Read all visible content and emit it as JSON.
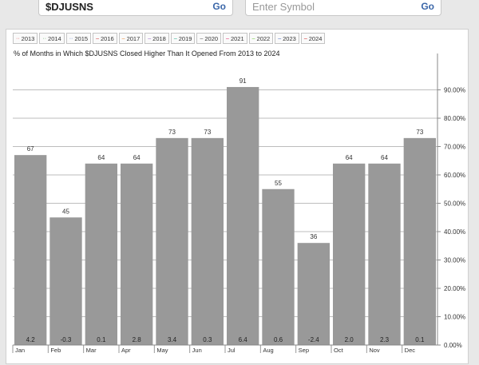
{
  "search": {
    "symbol_value": "$DJUSNS",
    "go_label": "Go",
    "compare_placeholder": "Enter Symbol",
    "compare_go_label": "Go"
  },
  "legend": {
    "years": [
      {
        "label": "2013",
        "dot": "··",
        "color": "#d84040"
      },
      {
        "label": "2014",
        "dot": "··",
        "color": "#55aa55"
      },
      {
        "label": "2015",
        "dot": "··",
        "color": "#5577cc"
      },
      {
        "label": "2016",
        "dot": "–",
        "color": "#cc3333"
      },
      {
        "label": "2017",
        "dot": "–",
        "color": "#ee8833"
      },
      {
        "label": "2018",
        "dot": "–",
        "color": "#9966cc"
      },
      {
        "label": "2019",
        "dot": "–",
        "color": "#22aa88"
      },
      {
        "label": "2020",
        "dot": "–",
        "color": "#555555"
      },
      {
        "label": "2021",
        "dot": "–",
        "color": "#dd2266"
      },
      {
        "label": "2022",
        "dot": "–",
        "color": "#66cc33"
      },
      {
        "label": "2023",
        "dot": "–",
        "color": "#4466bb"
      },
      {
        "label": "2024",
        "dot": "–",
        "color": "#cc2222"
      }
    ]
  },
  "chart_data": {
    "type": "bar",
    "title": "% of Months in Which $DJUSNS Closed Higher Than It Opened From 2013 to 2024",
    "categories": [
      "Jan",
      "Feb",
      "Mar",
      "Apr",
      "May",
      "Jun",
      "Jul",
      "Aug",
      "Sep",
      "Oct",
      "Nov",
      "Dec"
    ],
    "values": [
      67,
      45,
      64,
      64,
      73,
      73,
      91,
      55,
      36,
      64,
      64,
      73
    ],
    "bottom_labels": [
      "4.2",
      "-0.3",
      "0.1",
      "2.8",
      "3.4",
      "0.3",
      "6.4",
      "0.6",
      "-2.4",
      "2.0",
      "2.3",
      "0.1"
    ],
    "ylim": [
      0,
      100
    ],
    "yticks": [
      0,
      10,
      20,
      30,
      40,
      50,
      60,
      70,
      80,
      90
    ],
    "ytick_labels": [
      "0.00%",
      "10.00%",
      "20.00%",
      "30.00%",
      "40.00%",
      "50.00%",
      "60.00%",
      "70.00%",
      "80.00%",
      "90.00%"
    ],
    "y_axis_side": "right",
    "grid": true,
    "bar_color": "#999999"
  }
}
